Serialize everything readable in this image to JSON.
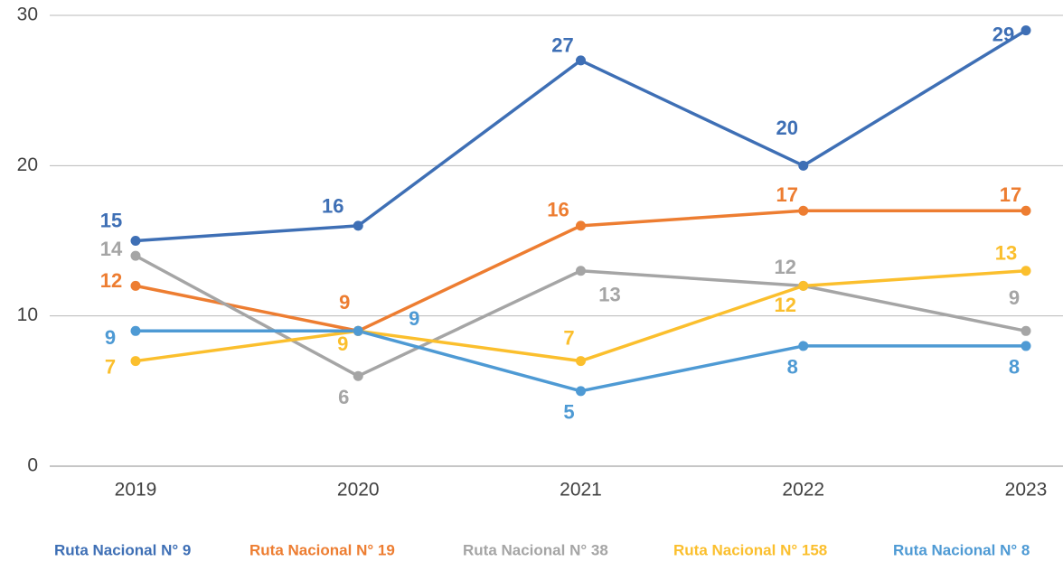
{
  "chart_data": {
    "type": "line",
    "categories": [
      "2019",
      "2020",
      "2021",
      "2022",
      "2023"
    ],
    "series": [
      {
        "name": "Ruta Nacional N° 9",
        "color": "#3e6fb5",
        "values": [
          15,
          16,
          27,
          20,
          29
        ]
      },
      {
        "name": "Ruta Nacional N° 19",
        "color": "#ed7d31",
        "values": [
          12,
          9,
          16,
          17,
          17
        ]
      },
      {
        "name": "Ruta Nacional N° 38",
        "color": "#a5a5a5",
        "values": [
          14,
          6,
          13,
          12,
          9
        ]
      },
      {
        "name": "Ruta Nacional N° 158",
        "color": "#fbbf2d",
        "values": [
          7,
          9,
          7,
          12,
          13
        ]
      },
      {
        "name": "Ruta Nacional N° 8",
        "color": "#4e9ad4",
        "values": [
          9,
          9,
          5,
          8,
          8
        ]
      }
    ],
    "ylim": [
      0,
      30
    ],
    "yticks": [
      0,
      10,
      20,
      30
    ],
    "grid": true,
    "legend": "bottom"
  }
}
